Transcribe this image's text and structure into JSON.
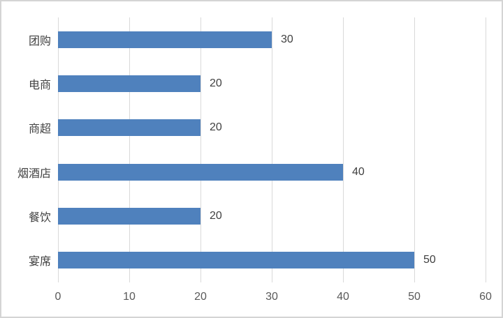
{
  "chart_data": {
    "type": "bar",
    "orientation": "horizontal",
    "title": "",
    "categories": [
      "团购",
      "电商",
      "商超",
      "烟酒店",
      "餐饮",
      "宴席"
    ],
    "values": [
      30,
      20,
      20,
      40,
      20,
      50
    ],
    "xlim": [
      0,
      60
    ],
    "x_ticks": [
      0,
      10,
      20,
      30,
      40,
      50,
      60
    ],
    "grid": "vertical-only",
    "legend_position": "none",
    "data_labels_shown": true,
    "colors": {
      "bar": "#4f81bd",
      "gridline": "#d9d9d9",
      "category_label": "#424242",
      "value_label": "#404040",
      "tick_label": "#595959",
      "frame_border": "#d4d4d4",
      "background": "#ffffff"
    }
  }
}
